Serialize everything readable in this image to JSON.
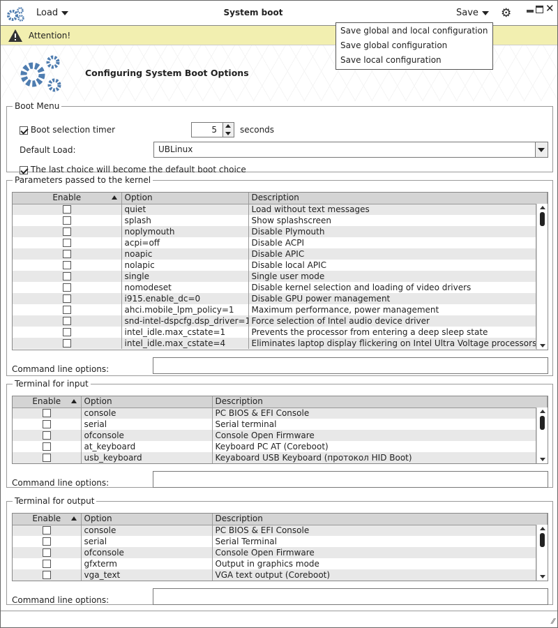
{
  "titlebar": {
    "title": "System boot",
    "load": "Load",
    "save": "Save",
    "save_menu": [
      "Save global and local configuration",
      "Save global configuration",
      "Save local configuration"
    ]
  },
  "attention": "Attention!",
  "banner": {
    "title": "Configuring System Boot Options"
  },
  "boot_menu": {
    "legend": "Boot Menu",
    "timer_label": "Boot selection timer",
    "timer_checked": true,
    "timer_value": "5",
    "timer_unit": "seconds",
    "default_load_label": "Default Load:",
    "default_load_value": "UBLinux",
    "last_choice_label": "The last choice will become the default boot choice",
    "last_choice_checked": true
  },
  "kernel": {
    "legend": "Parameters passed to the kernel",
    "columns": [
      "Enable",
      "Option",
      "Description"
    ],
    "rows": [
      [
        "quiet",
        "Load without text messages"
      ],
      [
        "splash",
        "Show splashscreen"
      ],
      [
        "noplymouth",
        "Disable Plymouth"
      ],
      [
        "acpi=off",
        "Disable ACPI"
      ],
      [
        "noapic",
        "Disable APIC"
      ],
      [
        "nolapic",
        "Disable local APIC"
      ],
      [
        "single",
        "Single user mode"
      ],
      [
        "nomodeset",
        "Disable kernel selection and loading of video drivers"
      ],
      [
        "i915.enable_dc=0",
        "Disable GPU power management"
      ],
      [
        "ahci.mobile_lpm_policy=1",
        "Maximum performance, power management"
      ],
      [
        "snd-intel-dspcfg.dsp_driver=1",
        "Force selection of Intel audio device driver"
      ],
      [
        "intel_idle.max_cstate=1",
        "Prevents the processor from entering a deep sleep state"
      ],
      [
        "intel_idle.max_cstate=4",
        "Eliminates laptop display flickering on Intel Ultra Voltage processors"
      ]
    ],
    "cmd_label": "Command line options:",
    "cmd_value": ""
  },
  "term_in": {
    "legend": "Terminal for input",
    "columns": [
      "Enable",
      "Option",
      "Description"
    ],
    "rows": [
      [
        "console",
        "PC BIOS & EFI Console"
      ],
      [
        "serial",
        "Serial terminal"
      ],
      [
        "ofconsole",
        "Console Open Firmware"
      ],
      [
        "at_keyboard",
        "Keyboard PC AT (Coreboot)"
      ],
      [
        "usb_keyboard",
        "Keyaboard USB Keyboard (протокол HID Boot)"
      ]
    ],
    "cmd_label": "Command line options:",
    "cmd_value": ""
  },
  "term_out": {
    "legend": "Terminal for output",
    "columns": [
      "Enable",
      "Option",
      "Description"
    ],
    "rows": [
      [
        "console",
        "PC BIOS & EFI Console"
      ],
      [
        "serial",
        "Serial Terminal"
      ],
      [
        "ofconsole",
        "Console Open Firmware"
      ],
      [
        "gfxterm",
        "Output in graphics mode"
      ],
      [
        "vga_text",
        "VGA text output (Coreboot)"
      ]
    ],
    "cmd_label": "Command line options:",
    "cmd_value": ""
  },
  "colors": {
    "accent": "#4f7db0",
    "attention_bg": "#f2efb0"
  }
}
